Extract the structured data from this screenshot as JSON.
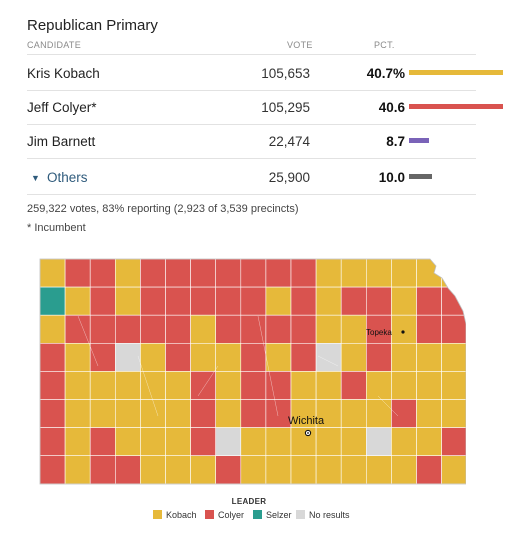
{
  "race": {
    "title": "Republican Primary",
    "headers": {
      "candidate": "CANDIDATE",
      "vote": "VOTE",
      "pct": "PCT."
    }
  },
  "candidates": [
    {
      "name": "Kris Kobach",
      "votes": "105,653",
      "pct": "40.7%",
      "share": 40.7,
      "color": "#e6b93a"
    },
    {
      "name": "Jeff Colyer*",
      "votes": "105,295",
      "pct": "40.6",
      "share": 40.6,
      "color": "#d9534f"
    },
    {
      "name": "Jim Barnett",
      "votes": "22,474",
      "pct": "8.7",
      "share": 8.7,
      "color": "#7a63b8"
    },
    {
      "name": "Others",
      "votes": "25,900",
      "pct": "10.0",
      "share": 10.0,
      "color": "#666666"
    }
  ],
  "others_caret_icon": "triangle-down-icon",
  "summary": "259,322 votes, 83% reporting (2,923 of 3,539 precincts)",
  "footnote": "* Incumbent",
  "map": {
    "cities": {
      "topeka": "Topeka",
      "wichita": "Wichita"
    },
    "colors": {
      "kobach": "#e6b93a",
      "colyer": "#d9534f",
      "selzer": "#2a9d8f",
      "none": "#d8d8d8"
    }
  },
  "legend": {
    "title": "LEADER",
    "items": [
      {
        "label": "Kobach",
        "color": "#e6b93a"
      },
      {
        "label": "Colyer",
        "color": "#d9534f"
      },
      {
        "label": "Selzer",
        "color": "#2a9d8f"
      },
      {
        "label": "No results",
        "color": "#d8d8d8"
      }
    ]
  }
}
